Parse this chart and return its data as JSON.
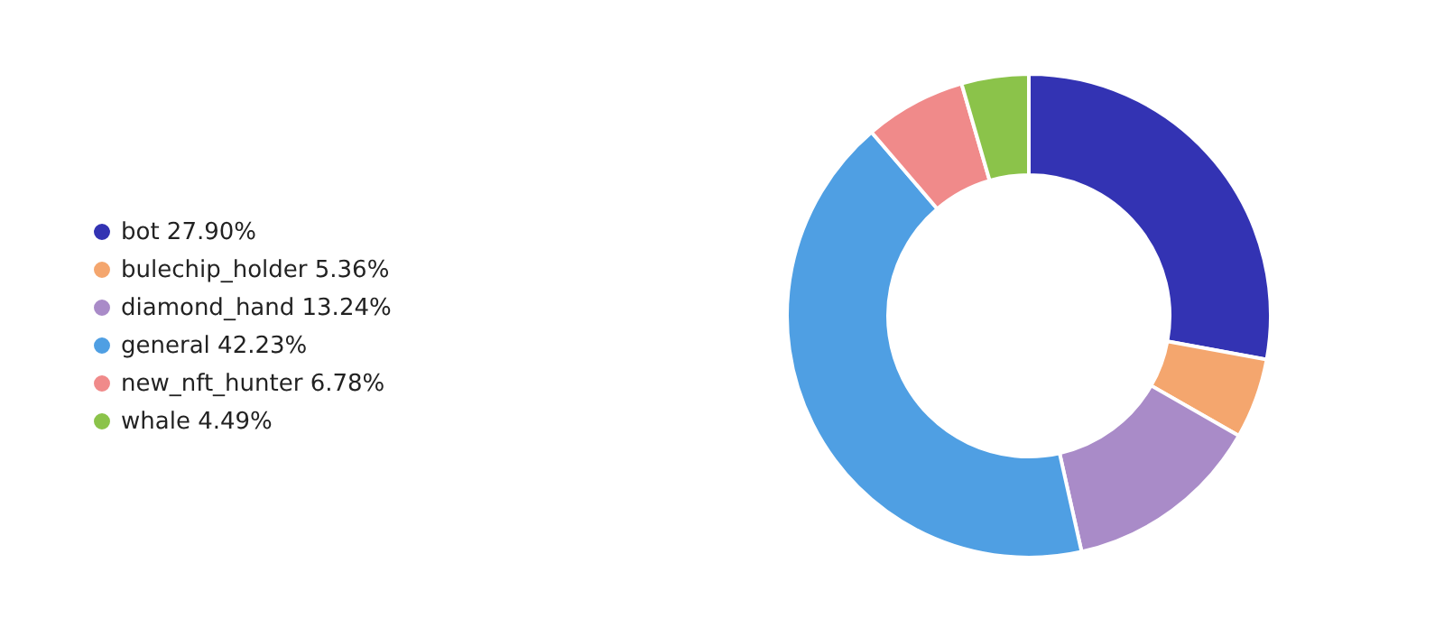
{
  "chart_data": {
    "type": "donut",
    "categories": [
      "bot",
      "bulechip_holder",
      "diamond_hand",
      "general",
      "new_nft_hunter",
      "whale"
    ],
    "values": [
      27.9,
      5.36,
      13.24,
      42.23,
      6.78,
      4.49
    ],
    "value_labels": [
      "27.90%",
      "5.36%",
      "13.24%",
      "42.23%",
      "6.78%",
      "4.49%"
    ],
    "colors": [
      "#3333b3",
      "#f4a66e",
      "#a98bc8",
      "#4f9fe3",
      "#f08a8a",
      "#8bc34a"
    ],
    "legend": "left"
  }
}
